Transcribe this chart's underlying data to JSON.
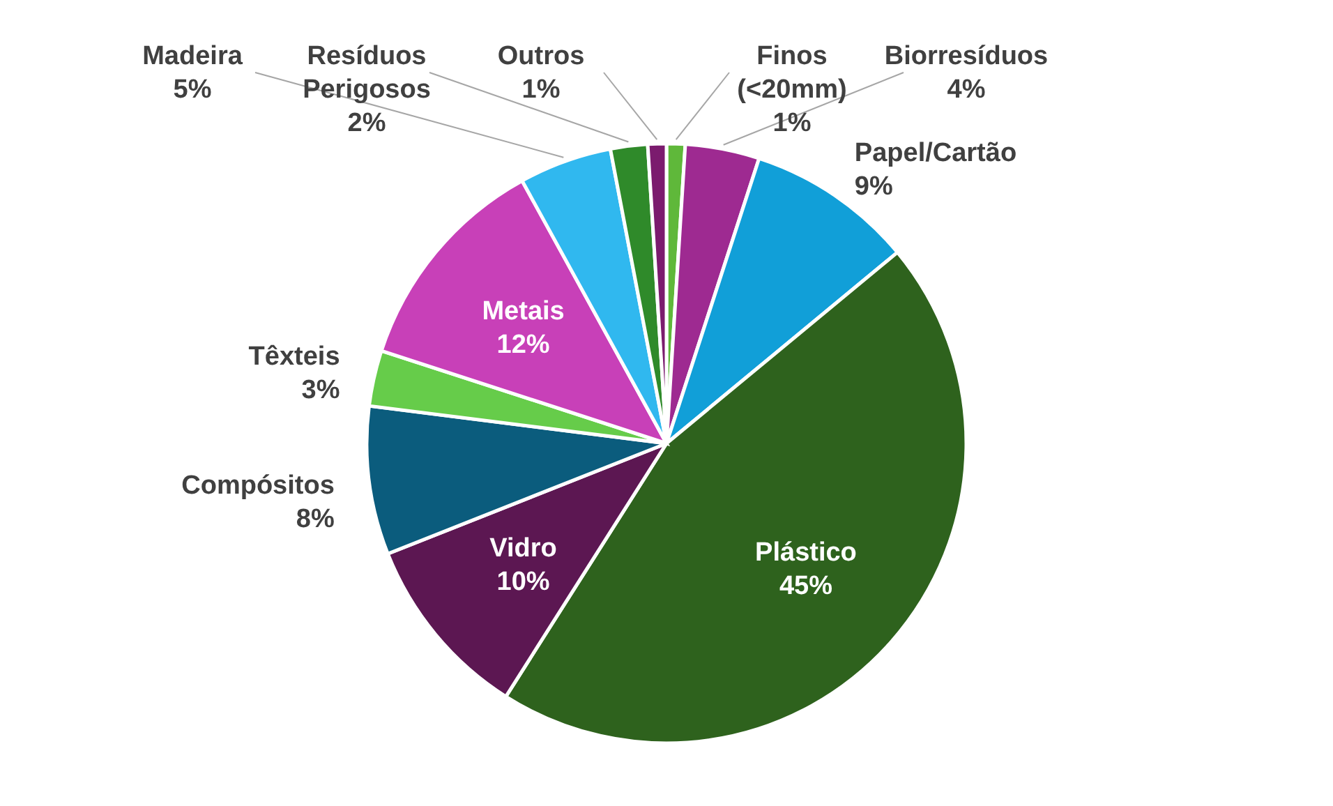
{
  "chart_data": {
    "type": "pie",
    "categories": [
      "Finos (<20mm)",
      "Biorresíduos",
      "Papel/Cartão",
      "Plástico",
      "Vidro",
      "Compósitos",
      "Têxteis",
      "Metais",
      "Madeira",
      "Resíduos Perigosos",
      "Outros"
    ],
    "values": [
      1,
      4,
      9,
      45,
      10,
      8,
      3,
      12,
      5,
      2,
      1
    ],
    "value_labels": [
      "1%",
      "4%",
      "9%",
      "45%",
      "10%",
      "8%",
      "3%",
      "12%",
      "5%",
      "2%",
      "1%"
    ],
    "colors": [
      "#5fb83a",
      "#9e2a91",
      "#119fd8",
      "#2e621d",
      "#5c1752",
      "#0b5c7d",
      "#66cc4a",
      "#c840b8",
      "#30b8ef",
      "#2f8a2a",
      "#7b1b6e"
    ]
  }
}
